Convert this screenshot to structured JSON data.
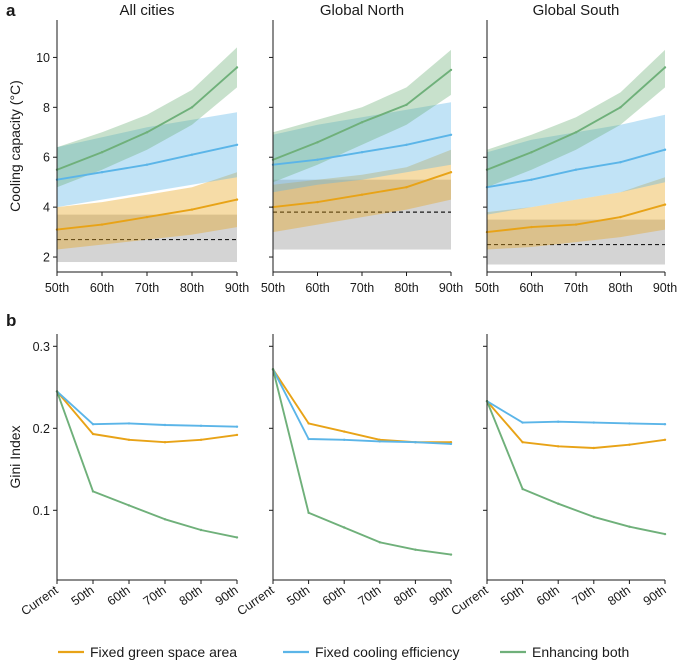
{
  "figure": {
    "panel_a_letter": "a",
    "panel_b_letter": "b"
  },
  "colors": {
    "fixed_green_space_area": "#E8A317",
    "fixed_cooling_efficiency": "#5BB5E8",
    "enhancing_both": "#6FB07A",
    "current_band": "#D4D4D4",
    "current_line": "#1a1a1a"
  },
  "legend": [
    {
      "key": "fixed_green_space_area",
      "label": "Fixed green space area"
    },
    {
      "key": "fixed_cooling_efficiency",
      "label": "Fixed cooling efficiency"
    },
    {
      "key": "enhancing_both",
      "label": "Enhancing both"
    }
  ],
  "chart_data": [
    {
      "type": "line",
      "panel": "a",
      "title": "All cities",
      "ylabel": "Cooling capacity (°C)",
      "xlabel": "",
      "categories": [
        "50th",
        "60th",
        "70th",
        "80th",
        "90th"
      ],
      "ylim": [
        1.4,
        11.5
      ],
      "yticks": [
        2,
        4,
        6,
        8,
        10
      ],
      "current": {
        "value": 2.7,
        "band": [
          1.8,
          3.7
        ]
      },
      "series": [
        {
          "key": "fixed_green_space_area",
          "name": "Fixed green space area",
          "values": [
            3.1,
            3.3,
            3.6,
            3.9,
            4.3
          ],
          "lower": [
            2.3,
            2.5,
            2.7,
            2.9,
            3.2
          ],
          "upper": [
            4.0,
            4.2,
            4.5,
            4.8,
            5.4
          ]
        },
        {
          "key": "fixed_cooling_efficiency",
          "name": "Fixed cooling efficiency",
          "values": [
            5.1,
            5.4,
            5.7,
            6.1,
            6.5
          ],
          "lower": [
            4.0,
            4.3,
            4.6,
            4.9,
            5.2
          ],
          "upper": [
            6.4,
            6.8,
            7.2,
            7.5,
            7.8
          ]
        },
        {
          "key": "enhancing_both",
          "name": "Enhancing both",
          "values": [
            5.5,
            6.2,
            7.0,
            8.0,
            9.6
          ],
          "lower": [
            4.8,
            5.5,
            6.3,
            7.3,
            8.8
          ],
          "upper": [
            6.4,
            7.0,
            7.7,
            8.7,
            10.4
          ]
        }
      ]
    },
    {
      "type": "line",
      "panel": "a",
      "title": "Global North",
      "ylabel": "",
      "xlabel": "",
      "categories": [
        "50th",
        "60th",
        "70th",
        "80th",
        "90th"
      ],
      "ylim": [
        1.4,
        11.5
      ],
      "yticks": [
        2,
        4,
        6,
        8,
        10
      ],
      "current": {
        "value": 3.8,
        "band": [
          2.3,
          5.1
        ]
      },
      "series": [
        {
          "key": "fixed_green_space_area",
          "name": "Fixed green space area",
          "values": [
            4.0,
            4.2,
            4.5,
            4.8,
            5.4
          ],
          "lower": [
            3.0,
            3.3,
            3.6,
            3.9,
            4.3
          ],
          "upper": [
            4.9,
            5.1,
            5.3,
            5.6,
            6.3
          ]
        },
        {
          "key": "fixed_cooling_efficiency",
          "name": "Fixed cooling efficiency",
          "values": [
            5.7,
            5.9,
            6.2,
            6.5,
            6.9
          ],
          "lower": [
            4.6,
            4.9,
            5.1,
            5.4,
            5.7
          ],
          "upper": [
            6.9,
            7.3,
            7.6,
            7.9,
            8.2
          ]
        },
        {
          "key": "enhancing_both",
          "name": "Enhancing both",
          "values": [
            5.9,
            6.6,
            7.4,
            8.1,
            9.5
          ],
          "lower": [
            5.0,
            5.7,
            6.5,
            7.3,
            8.5
          ],
          "upper": [
            7.0,
            7.5,
            8.0,
            8.8,
            10.3
          ]
        }
      ]
    },
    {
      "type": "line",
      "panel": "a",
      "title": "Global South",
      "ylabel": "",
      "xlabel": "",
      "categories": [
        "50th",
        "60th",
        "70th",
        "80th",
        "90th"
      ],
      "ylim": [
        1.4,
        11.5
      ],
      "yticks": [
        2,
        4,
        6,
        8,
        10
      ],
      "current": {
        "value": 2.5,
        "band": [
          1.7,
          3.5
        ]
      },
      "series": [
        {
          "key": "fixed_green_space_area",
          "name": "Fixed green space area",
          "values": [
            3.0,
            3.2,
            3.3,
            3.6,
            4.1
          ],
          "lower": [
            2.3,
            2.4,
            2.6,
            2.8,
            3.1
          ],
          "upper": [
            3.8,
            4.0,
            4.3,
            4.6,
            5.2
          ]
        },
        {
          "key": "fixed_cooling_efficiency",
          "name": "Fixed cooling efficiency",
          "values": [
            4.8,
            5.1,
            5.5,
            5.8,
            6.3
          ],
          "lower": [
            3.7,
            4.0,
            4.3,
            4.6,
            5.0
          ],
          "upper": [
            6.2,
            6.7,
            7.0,
            7.3,
            7.7
          ]
        },
        {
          "key": "enhancing_both",
          "name": "Enhancing both",
          "values": [
            5.5,
            6.2,
            7.0,
            8.0,
            9.6
          ],
          "lower": [
            4.8,
            5.5,
            6.3,
            7.3,
            8.8
          ],
          "upper": [
            6.3,
            6.9,
            7.6,
            8.6,
            10.3
          ]
        }
      ]
    },
    {
      "type": "line",
      "panel": "b",
      "title": "",
      "ylabel": "Gini Index",
      "xlabel": "",
      "categories": [
        "Current",
        "50th",
        "60th",
        "70th",
        "80th",
        "90th"
      ],
      "ylim": [
        0.015,
        0.315
      ],
      "yticks": [
        0.1,
        0.2,
        0.3
      ],
      "series": [
        {
          "key": "fixed_green_space_area",
          "name": "Fixed green space area",
          "values": [
            0.245,
            0.193,
            0.186,
            0.183,
            0.186,
            0.192
          ]
        },
        {
          "key": "fixed_cooling_efficiency",
          "name": "Fixed cooling efficiency",
          "values": [
            0.245,
            0.205,
            0.206,
            0.204,
            0.203,
            0.202
          ]
        },
        {
          "key": "enhancing_both",
          "name": "Enhancing both",
          "values": [
            0.245,
            0.123,
            0.106,
            0.089,
            0.076,
            0.067
          ]
        }
      ]
    },
    {
      "type": "line",
      "panel": "b",
      "title": "",
      "ylabel": "",
      "xlabel": "",
      "categories": [
        "Current",
        "50th",
        "60th",
        "70th",
        "80th",
        "90th"
      ],
      "ylim": [
        0.015,
        0.315
      ],
      "yticks": [
        0.1,
        0.2,
        0.3
      ],
      "series": [
        {
          "key": "fixed_green_space_area",
          "name": "Fixed green space area",
          "values": [
            0.272,
            0.206,
            0.196,
            0.186,
            0.183,
            0.183
          ]
        },
        {
          "key": "fixed_cooling_efficiency",
          "name": "Fixed cooling efficiency",
          "values": [
            0.272,
            0.187,
            0.186,
            0.184,
            0.183,
            0.181
          ]
        },
        {
          "key": "enhancing_both",
          "name": "Enhancing both",
          "values": [
            0.272,
            0.097,
            0.079,
            0.061,
            0.052,
            0.046
          ]
        }
      ]
    },
    {
      "type": "line",
      "panel": "b",
      "title": "",
      "ylabel": "",
      "xlabel": "",
      "categories": [
        "Current",
        "50th",
        "60th",
        "70th",
        "80th",
        "90th"
      ],
      "ylim": [
        0.015,
        0.315
      ],
      "yticks": [
        0.1,
        0.2,
        0.3
      ],
      "series": [
        {
          "key": "fixed_green_space_area",
          "name": "Fixed green space area",
          "values": [
            0.233,
            0.183,
            0.178,
            0.176,
            0.18,
            0.186
          ]
        },
        {
          "key": "fixed_cooling_efficiency",
          "name": "Fixed cooling efficiency",
          "values": [
            0.233,
            0.207,
            0.208,
            0.207,
            0.206,
            0.205
          ]
        },
        {
          "key": "enhancing_both",
          "name": "Enhancing both",
          "values": [
            0.233,
            0.126,
            0.108,
            0.092,
            0.08,
            0.071
          ]
        }
      ]
    }
  ]
}
